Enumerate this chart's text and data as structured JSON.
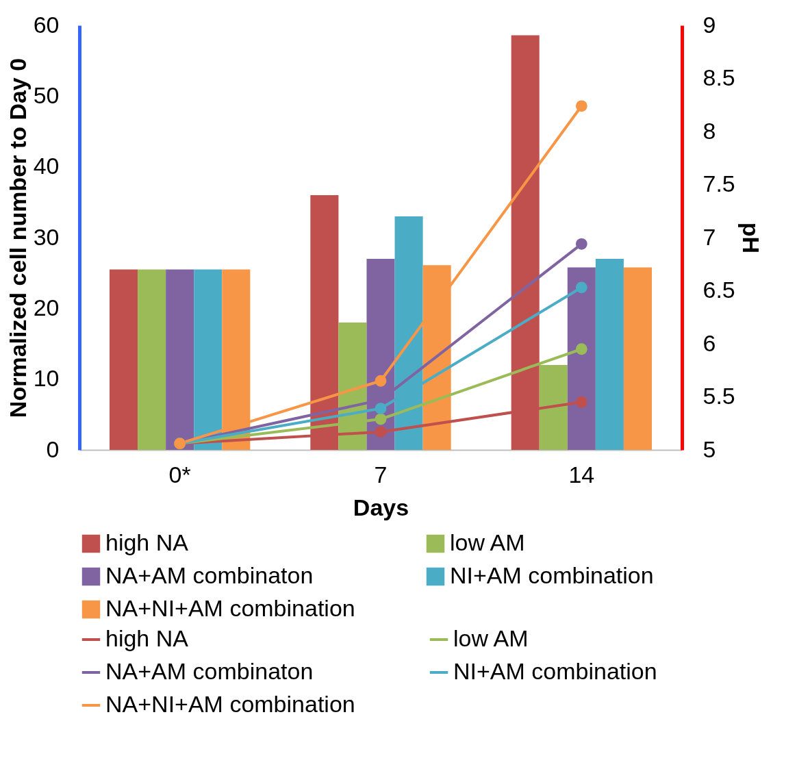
{
  "chart_data": {
    "type": "bar",
    "xlabel": "Days",
    "ylabel": "Normalized cell number to Day 0",
    "y2label": "pH",
    "categories": [
      "0*",
      "7",
      "14"
    ],
    "series": [
      {
        "name": "high NA",
        "color": "#c0504d",
        "values": [
          25.5,
          36,
          58.6
        ]
      },
      {
        "name": "low AM",
        "color": "#9bbb59",
        "values": [
          25.5,
          18,
          12
        ]
      },
      {
        "name": "NA+AM combinaton",
        "color": "#8064a2",
        "values": [
          25.5,
          27,
          25.8
        ]
      },
      {
        "name": "NI+AM combination",
        "color": "#4bacc6",
        "values": [
          25.5,
          33,
          27
        ]
      },
      {
        "name": "NA+NI+AM combination",
        "color": "#f79646",
        "values": [
          25.5,
          26.1,
          25.8
        ]
      },
      {
        "name": "high NA",
        "type": "line",
        "axis": "y2",
        "color": "#c0504d",
        "values": [
          5.06,
          5.17,
          5.45
        ]
      },
      {
        "name": "low AM",
        "type": "line",
        "axis": "y2",
        "color": "#9bbb59",
        "values": [
          5.06,
          5.29,
          5.95
        ]
      },
      {
        "name": "NA+AM combinaton",
        "type": "line",
        "axis": "y2",
        "color": "#8064a2",
        "values": [
          5.06,
          5.47,
          6.94
        ]
      },
      {
        "name": "NI+AM combination",
        "type": "line",
        "axis": "y2",
        "color": "#4bacc6",
        "values": [
          5.06,
          5.39,
          6.53
        ]
      },
      {
        "name": "NA+NI+AM combination",
        "type": "line",
        "axis": "y2",
        "color": "#f79646",
        "values": [
          5.06,
          5.65,
          8.24
        ]
      }
    ],
    "ylim": [
      0,
      60
    ],
    "yticks": [
      0,
      10,
      20,
      30,
      40,
      50,
      60
    ],
    "y2lim": [
      5,
      9
    ],
    "y2ticks": [
      5,
      5.5,
      6,
      6.5,
      7,
      7.5,
      8,
      8.5,
      9
    ],
    "legend": "bottom",
    "marker": "circle",
    "line_style": "solid"
  }
}
